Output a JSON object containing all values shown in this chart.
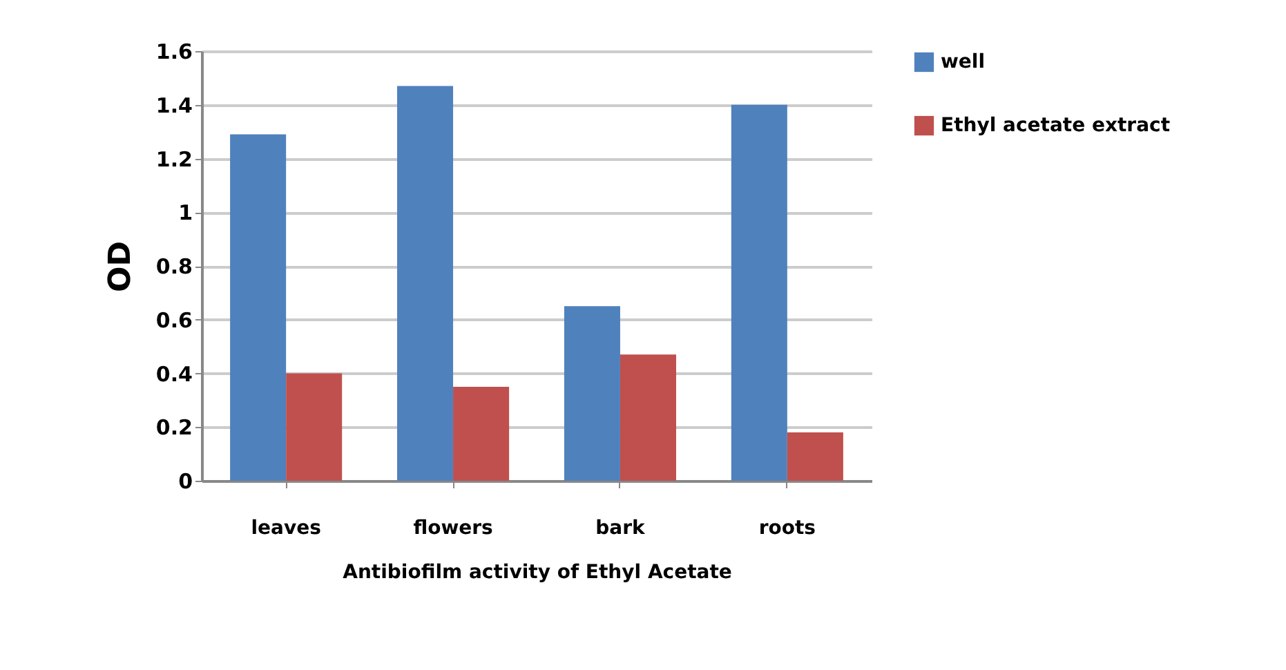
{
  "chart_data": {
    "type": "bar",
    "xlabel": "Antibiofilm activity of Ethyl Acetate",
    "ylabel": "OD",
    "categories": [
      "leaves",
      "flowers",
      "bark",
      "roots"
    ],
    "series": [
      {
        "name": "well",
        "color": "#4f81bd",
        "values": [
          1.29,
          1.47,
          0.65,
          1.4
        ]
      },
      {
        "name": "Ethyl acetate extract",
        "color": "#c0504d",
        "values": [
          0.4,
          0.35,
          0.47,
          0.18
        ]
      }
    ],
    "ylim": [
      0,
      1.6
    ],
    "yticks": [
      0,
      0.2,
      0.4,
      0.6,
      0.8,
      1,
      1.2,
      1.4,
      1.6
    ],
    "grid": "y",
    "legend": "right"
  }
}
